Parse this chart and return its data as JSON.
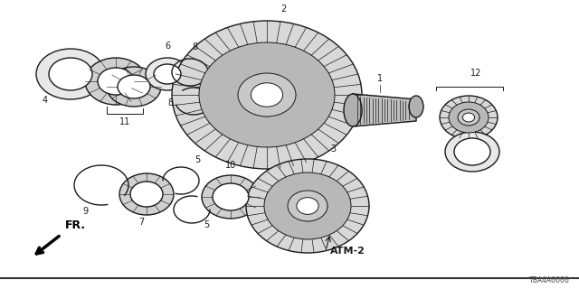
{
  "background_color": "#ffffff",
  "line_color": "#1a1a1a",
  "label_color": "#111111",
  "part_code": "TBA4A0600",
  "fr_label": "FR.",
  "atm_label": "ATM-2",
  "fig_width": 6.4,
  "fig_height": 3.2,
  "dpi": 100
}
